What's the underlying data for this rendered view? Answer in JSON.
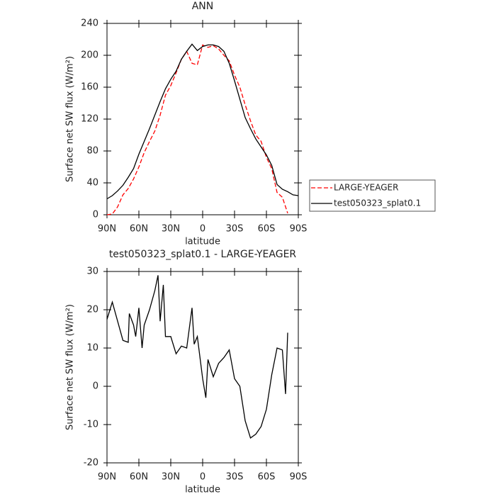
{
  "chart_data": [
    {
      "type": "line",
      "title": "ANN",
      "xlabel": "latitude",
      "ylabel": "Surface net SW flux (W/m²)",
      "x": [
        90,
        85,
        80,
        75,
        70,
        65,
        60,
        55,
        50,
        45,
        40,
        35,
        30,
        25,
        20,
        15,
        10,
        5,
        0,
        -5,
        -10,
        -15,
        -20,
        -25,
        -30,
        -35,
        -40,
        -45,
        -50,
        -55,
        -60,
        -65,
        -70,
        -75,
        -80,
        -85,
        -90
      ],
      "xlim": [
        90,
        -90
      ],
      "xticks": [
        {
          "value": 90,
          "label": "90N"
        },
        {
          "value": 60,
          "label": "60N"
        },
        {
          "value": 30,
          "label": "30N"
        },
        0,
        {
          "value": -30,
          "label": "30S"
        },
        {
          "value": -60,
          "label": "60S"
        },
        {
          "value": -90,
          "label": "90S"
        }
      ],
      "ylim": [
        0,
        240
      ],
      "yticks": [
        0,
        40,
        80,
        120,
        160,
        200,
        240
      ],
      "legend": "right",
      "series": [
        {
          "name": "LARGE-YEAGER",
          "color": "#ff0000",
          "dashed": true,
          "values": [
            0,
            1,
            10,
            25,
            33,
            45,
            60,
            78,
            92,
            105,
            125,
            150,
            162,
            178,
            195,
            205,
            190,
            188,
            213,
            210,
            212,
            208,
            200,
            193,
            175,
            160,
            138,
            118,
            100,
            92,
            72,
            58,
            28,
            22,
            2,
            null,
            null
          ]
        },
        {
          "name": "test050323_splat0.1",
          "color": "#000000",
          "values": [
            20,
            24,
            30,
            37,
            47,
            58,
            76,
            92,
            108,
            125,
            142,
            158,
            170,
            180,
            195,
            205,
            214,
            206,
            211,
            213,
            213,
            211,
            205,
            190,
            168,
            145,
            122,
            108,
            95,
            85,
            75,
            62,
            38,
            32,
            29,
            25,
            24
          ]
        }
      ]
    },
    {
      "type": "line",
      "title": "test050323_splat0.1 - LARGE-YEAGER",
      "xlabel": "latitude",
      "ylabel": "Surface net SW flux (W/m²)",
      "x": [
        90,
        85,
        80,
        75,
        70,
        69,
        65,
        63,
        60,
        57,
        55,
        50,
        45,
        42,
        40,
        37,
        35,
        30,
        25,
        20,
        15,
        10,
        8,
        5,
        0,
        -3,
        -5,
        -10,
        -15,
        -20,
        -25,
        -30,
        -35,
        -40,
        -45,
        -50,
        -55,
        -60,
        -65,
        -70,
        -75,
        -78,
        -80
      ],
      "xlim": [
        90,
        -90
      ],
      "xticks": [
        {
          "value": 90,
          "label": "90N"
        },
        {
          "value": 60,
          "label": "60N"
        },
        {
          "value": 30,
          "label": "30N"
        },
        0,
        {
          "value": -30,
          "label": "30S"
        },
        {
          "value": -60,
          "label": "60S"
        },
        {
          "value": -90,
          "label": "90S"
        }
      ],
      "ylim": [
        -20,
        30
      ],
      "yticks": [
        -20,
        -10,
        0,
        10,
        20,
        30
      ],
      "series": [
        {
          "color": "#000000",
          "values": [
            17.5,
            22,
            17,
            12,
            11.5,
            19,
            16,
            13,
            20.5,
            10,
            16,
            20,
            25,
            29,
            17,
            26.5,
            13,
            13,
            8.5,
            10.5,
            10,
            20.5,
            11,
            13,
            2,
            -3,
            7,
            2.5,
            6,
            7.5,
            9.5,
            2,
            0,
            -9,
            -13.5,
            -12.5,
            -10.5,
            -6,
            3,
            10,
            9.5,
            -2,
            14
          ]
        }
      ]
    }
  ]
}
